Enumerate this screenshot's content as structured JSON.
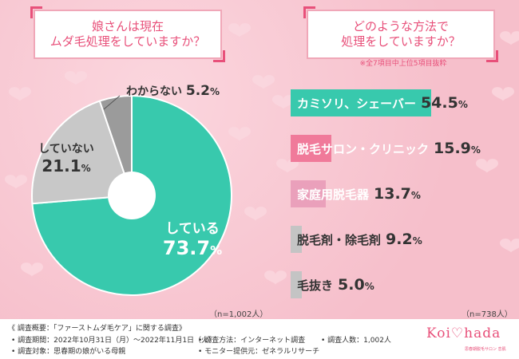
{
  "left_question": "娘さんは現在\nムダ毛処理をしていますか？",
  "right_question": "どのような方法で\n処理をしていますか？",
  "right_note": "※全7項目中上位5項目抜粋",
  "left_n": "（n=1,002人）",
  "right_n": "（n=738人）",
  "colors": {
    "pink": "#e8507a",
    "teal": "#38c9ad",
    "grey": "#bdbdbd",
    "darkgrey": "#9b9b9b"
  },
  "pie_labels": {
    "yes": {
      "label": "している",
      "value": "73.7",
      "unit": "%"
    },
    "no": {
      "label": "していない",
      "value": "21.1",
      "unit": "%"
    },
    "unknown": {
      "label": "わからない",
      "value": "5.2",
      "unit": "%"
    }
  },
  "chart_data": [
    {
      "type": "pie",
      "title": "娘さんは現在ムダ毛処理をしていますか？",
      "labels": [
        "している",
        "していない",
        "わからない"
      ],
      "values": [
        73.7,
        21.1,
        5.2
      ],
      "colors": [
        "#38c9ad",
        "#c8c8c8",
        "#9b9b9b"
      ],
      "donut": true
    },
    {
      "type": "bar",
      "orientation": "horizontal",
      "title": "どのような方法で処理をしていますか？",
      "categories": [
        "カミソリ、シェーバー",
        "脱毛サロン・クリニック",
        "家庭用脱毛器",
        "脱毛剤・除毛剤",
        "毛抜き"
      ],
      "values": [
        54.5,
        15.9,
        13.7,
        9.2,
        5.0
      ],
      "value_labels": [
        "54.5",
        "15.9",
        "13.7",
        "9.2",
        "5.0"
      ],
      "unit": "%",
      "bar_colors": [
        "#38c9ad",
        "#f07a9a",
        "#eaa0bb",
        "#c4c4c4",
        "#c4c4c4"
      ],
      "label_colors": [
        "#ffffff",
        "#ffffff",
        "#ffffff",
        "#333333",
        "#333333"
      ],
      "xlim": [
        0,
        54.5
      ]
    }
  ],
  "footer": {
    "survey_overview": "《 調査概要：「ファーストムダ毛ケア」に関する調査》",
    "period": "• 調査期間：2022年10月31日（月）～2022年11月1日（火）",
    "target": "• 調査対象：思春期の娘がいる母親",
    "method": "• 調査方法：インターネット調査",
    "provider": "• モニター提供元：ゼネラルリサーチ",
    "respondents": "• 調査人数：1,002人"
  },
  "logo": {
    "text": "Koi♡hada",
    "sub": "思春期脱毛サロン 恋肌"
  }
}
